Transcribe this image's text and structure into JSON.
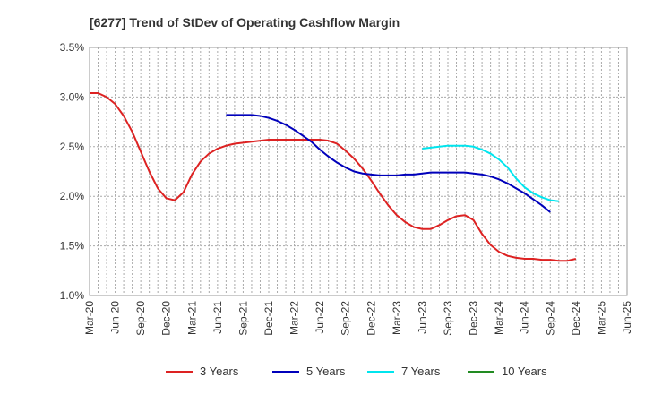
{
  "chart_data": {
    "type": "line",
    "title": "[6277]  Trend of StDev of Operating Cashflow Margin",
    "xlabel": "",
    "ylabel": "",
    "x_tick_labels": [
      "Mar-20",
      "Jun-20",
      "Sep-20",
      "Dec-20",
      "Mar-21",
      "Jun-21",
      "Sep-21",
      "Dec-21",
      "Mar-22",
      "Jun-22",
      "Sep-22",
      "Dec-22",
      "Mar-23",
      "Jun-23",
      "Sep-23",
      "Dec-23",
      "Mar-24",
      "Jun-24",
      "Sep-24",
      "Dec-24",
      "Mar-25",
      "Jun-25"
    ],
    "y_tick_labels": [
      "3.5%",
      "3.0%",
      "2.5%",
      "2.0%",
      "1.5%",
      "1.0%"
    ],
    "ylim": [
      1.0,
      3.5
    ],
    "grid": true,
    "legend_position": "bottom",
    "series": [
      {
        "name": "3 Years",
        "color": "#dd2222",
        "points": [
          [
            0,
            3.04
          ],
          [
            1,
            3.04
          ],
          [
            2,
            3.0
          ],
          [
            3,
            2.93
          ],
          [
            4,
            2.81
          ],
          [
            5,
            2.65
          ],
          [
            6,
            2.45
          ],
          [
            7,
            2.25
          ],
          [
            8,
            2.08
          ],
          [
            9,
            1.98
          ],
          [
            10,
            1.96
          ],
          [
            11,
            2.04
          ],
          [
            12,
            2.22
          ],
          [
            13,
            2.35
          ],
          [
            14,
            2.43
          ],
          [
            15,
            2.48
          ],
          [
            16,
            2.51
          ],
          [
            17,
            2.53
          ],
          [
            18,
            2.54
          ],
          [
            19,
            2.55
          ],
          [
            20,
            2.56
          ],
          [
            21,
            2.57
          ],
          [
            22,
            2.57
          ],
          [
            23,
            2.57
          ],
          [
            24,
            2.57
          ],
          [
            25,
            2.57
          ],
          [
            26,
            2.57
          ],
          [
            27,
            2.57
          ],
          [
            28,
            2.56
          ],
          [
            29,
            2.53
          ],
          [
            30,
            2.46
          ],
          [
            31,
            2.38
          ],
          [
            32,
            2.28
          ],
          [
            33,
            2.16
          ],
          [
            34,
            2.03
          ],
          [
            35,
            1.91
          ],
          [
            36,
            1.81
          ],
          [
            37,
            1.74
          ],
          [
            38,
            1.69
          ],
          [
            39,
            1.67
          ],
          [
            40,
            1.67
          ],
          [
            41,
            1.71
          ],
          [
            42,
            1.76
          ],
          [
            43,
            1.8
          ],
          [
            44,
            1.81
          ],
          [
            45,
            1.76
          ],
          [
            46,
            1.62
          ],
          [
            47,
            1.51
          ],
          [
            48,
            1.44
          ],
          [
            49,
            1.4
          ],
          [
            50,
            1.38
          ],
          [
            51,
            1.37
          ],
          [
            52,
            1.37
          ],
          [
            53,
            1.36
          ],
          [
            54,
            1.36
          ],
          [
            55,
            1.35
          ],
          [
            56,
            1.35
          ],
          [
            57,
            1.37
          ]
        ]
      },
      {
        "name": "5 Years",
        "color": "#0000bb",
        "points": [
          [
            16,
            2.82
          ],
          [
            17,
            2.82
          ],
          [
            18,
            2.82
          ],
          [
            19,
            2.82
          ],
          [
            20,
            2.81
          ],
          [
            21,
            2.79
          ],
          [
            22,
            2.76
          ],
          [
            23,
            2.72
          ],
          [
            24,
            2.67
          ],
          [
            25,
            2.61
          ],
          [
            26,
            2.55
          ],
          [
            27,
            2.47
          ],
          [
            28,
            2.4
          ],
          [
            29,
            2.34
          ],
          [
            30,
            2.29
          ],
          [
            31,
            2.25
          ],
          [
            32,
            2.23
          ],
          [
            33,
            2.22
          ],
          [
            34,
            2.21
          ],
          [
            35,
            2.21
          ],
          [
            36,
            2.21
          ],
          [
            37,
            2.22
          ],
          [
            38,
            2.22
          ],
          [
            39,
            2.23
          ],
          [
            40,
            2.24
          ],
          [
            41,
            2.24
          ],
          [
            42,
            2.24
          ],
          [
            43,
            2.24
          ],
          [
            44,
            2.24
          ],
          [
            45,
            2.23
          ],
          [
            46,
            2.22
          ],
          [
            47,
            2.2
          ],
          [
            48,
            2.17
          ],
          [
            49,
            2.13
          ],
          [
            50,
            2.08
          ],
          [
            51,
            2.03
          ],
          [
            52,
            1.97
          ],
          [
            53,
            1.91
          ],
          [
            54,
            1.84
          ]
        ]
      },
      {
        "name": "7 Years",
        "color": "#00e5ee",
        "points": [
          [
            39,
            2.48
          ],
          [
            40,
            2.49
          ],
          [
            41,
            2.5
          ],
          [
            42,
            2.51
          ],
          [
            43,
            2.51
          ],
          [
            44,
            2.51
          ],
          [
            45,
            2.5
          ],
          [
            46,
            2.47
          ],
          [
            47,
            2.43
          ],
          [
            48,
            2.37
          ],
          [
            49,
            2.29
          ],
          [
            50,
            2.18
          ],
          [
            51,
            2.09
          ],
          [
            52,
            2.03
          ],
          [
            53,
            1.99
          ],
          [
            54,
            1.96
          ],
          [
            55,
            1.95
          ]
        ]
      },
      {
        "name": "10 Years",
        "color": "#228b22",
        "points": []
      }
    ]
  }
}
